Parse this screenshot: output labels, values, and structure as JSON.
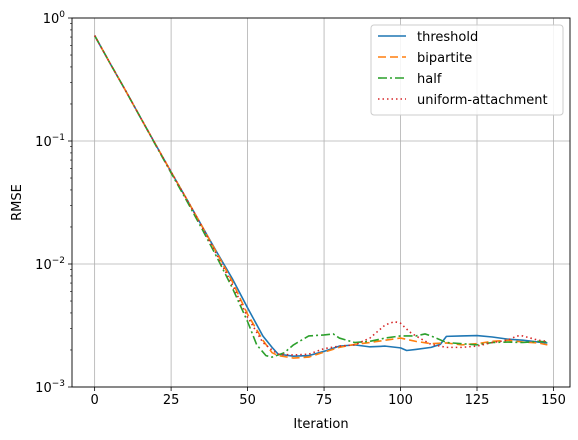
{
  "chart_data": {
    "type": "line",
    "xlabel": "Iteration",
    "ylabel": "RMSE",
    "yscale": "log",
    "xlim": [
      -7.4,
      155.4
    ],
    "ylim": [
      0.001,
      1
    ],
    "x_ticks": [
      0,
      25,
      50,
      75,
      100,
      125,
      150
    ],
    "y_ticks": [
      {
        "value": 0.001,
        "base": "10",
        "exp": "−3"
      },
      {
        "value": 0.01,
        "base": "10",
        "exp": "−2"
      },
      {
        "value": 0.1,
        "base": "10",
        "exp": "−1"
      },
      {
        "value": 1,
        "base": "10",
        "exp": "0"
      }
    ],
    "grid": true,
    "legend_position": "top-right",
    "series": [
      {
        "name": "threshold",
        "color": "#1f77b4",
        "dash": "solid",
        "points": [
          [
            0,
            0.72
          ],
          [
            5,
            0.43
          ],
          [
            10,
            0.26
          ],
          [
            15,
            0.155
          ],
          [
            20,
            0.093
          ],
          [
            25,
            0.056
          ],
          [
            30,
            0.034
          ],
          [
            35,
            0.0205
          ],
          [
            40,
            0.0124
          ],
          [
            45,
            0.0076
          ],
          [
            50,
            0.0044
          ],
          [
            55,
            0.0026
          ],
          [
            58,
            0.0021
          ],
          [
            60,
            0.00185
          ],
          [
            65,
            0.00178
          ],
          [
            70,
            0.0018
          ],
          [
            75,
            0.00195
          ],
          [
            80,
            0.00215
          ],
          [
            85,
            0.0022
          ],
          [
            90,
            0.00212
          ],
          [
            95,
            0.00215
          ],
          [
            100,
            0.00208
          ],
          [
            102,
            0.00198
          ],
          [
            105,
            0.00202
          ],
          [
            110,
            0.0021
          ],
          [
            113,
            0.00222
          ],
          [
            115,
            0.00258
          ],
          [
            120,
            0.0026
          ],
          [
            125,
            0.00262
          ],
          [
            130,
            0.00255
          ],
          [
            135,
            0.00245
          ],
          [
            140,
            0.0024
          ],
          [
            145,
            0.00232
          ],
          [
            148,
            0.00228
          ]
        ]
      },
      {
        "name": "bipartite",
        "color": "#ff7f0e",
        "dash": "8,4",
        "points": [
          [
            0,
            0.72
          ],
          [
            5,
            0.43
          ],
          [
            10,
            0.26
          ],
          [
            15,
            0.155
          ],
          [
            20,
            0.093
          ],
          [
            25,
            0.056
          ],
          [
            30,
            0.034
          ],
          [
            35,
            0.0205
          ],
          [
            40,
            0.0122
          ],
          [
            45,
            0.0072
          ],
          [
            50,
            0.0039
          ],
          [
            55,
            0.0024
          ],
          [
            58,
            0.0019
          ],
          [
            60,
            0.0018
          ],
          [
            65,
            0.00172
          ],
          [
            70,
            0.00175
          ],
          [
            75,
            0.00192
          ],
          [
            80,
            0.0021
          ],
          [
            85,
            0.00222
          ],
          [
            90,
            0.0023
          ],
          [
            95,
            0.0024
          ],
          [
            100,
            0.0025
          ],
          [
            105,
            0.00235
          ],
          [
            110,
            0.00225
          ],
          [
            115,
            0.00228
          ],
          [
            120,
            0.0022
          ],
          [
            125,
            0.00225
          ],
          [
            130,
            0.00235
          ],
          [
            135,
            0.0024
          ],
          [
            140,
            0.00232
          ],
          [
            145,
            0.00228
          ],
          [
            148,
            0.0022
          ]
        ]
      },
      {
        "name": "half",
        "color": "#2ca02c",
        "dash": "9,3,2,3",
        "points": [
          [
            0,
            0.72
          ],
          [
            5,
            0.43
          ],
          [
            10,
            0.26
          ],
          [
            15,
            0.155
          ],
          [
            20,
            0.092
          ],
          [
            25,
            0.055
          ],
          [
            30,
            0.033
          ],
          [
            35,
            0.0195
          ],
          [
            40,
            0.0113
          ],
          [
            45,
            0.0064
          ],
          [
            50,
            0.0034
          ],
          [
            53,
            0.0022
          ],
          [
            56,
            0.0018
          ],
          [
            58,
            0.00175
          ],
          [
            62,
            0.0019
          ],
          [
            65,
            0.0022
          ],
          [
            70,
            0.0026
          ],
          [
            75,
            0.00265
          ],
          [
            78,
            0.0027
          ],
          [
            80,
            0.0025
          ],
          [
            85,
            0.0023
          ],
          [
            90,
            0.00235
          ],
          [
            95,
            0.0025
          ],
          [
            100,
            0.0026
          ],
          [
            105,
            0.0026
          ],
          [
            108,
            0.0027
          ],
          [
            110,
            0.0026
          ],
          [
            115,
            0.0023
          ],
          [
            120,
            0.00225
          ],
          [
            125,
            0.0022
          ],
          [
            130,
            0.0023
          ],
          [
            135,
            0.00232
          ],
          [
            140,
            0.0023
          ],
          [
            145,
            0.00235
          ],
          [
            148,
            0.00232
          ]
        ]
      },
      {
        "name": "uniform-attachment",
        "color": "#d62728",
        "dash": "1.5,3",
        "points": [
          [
            0,
            0.72
          ],
          [
            5,
            0.43
          ],
          [
            10,
            0.26
          ],
          [
            15,
            0.155
          ],
          [
            20,
            0.093
          ],
          [
            25,
            0.056
          ],
          [
            30,
            0.034
          ],
          [
            35,
            0.0203
          ],
          [
            40,
            0.0118
          ],
          [
            45,
            0.0068
          ],
          [
            50,
            0.0037
          ],
          [
            55,
            0.0023
          ],
          [
            58,
            0.002
          ],
          [
            60,
            0.00185
          ],
          [
            65,
            0.00182
          ],
          [
            70,
            0.00185
          ],
          [
            75,
            0.00205
          ],
          [
            80,
            0.00215
          ],
          [
            85,
            0.0022
          ],
          [
            90,
            0.0025
          ],
          [
            95,
            0.0032
          ],
          [
            98,
            0.0034
          ],
          [
            100,
            0.0033
          ],
          [
            103,
            0.0028
          ],
          [
            105,
            0.0026
          ],
          [
            110,
            0.00222
          ],
          [
            115,
            0.0021
          ],
          [
            120,
            0.0021
          ],
          [
            125,
            0.00215
          ],
          [
            130,
            0.0023
          ],
          [
            135,
            0.0024
          ],
          [
            138,
            0.0026
          ],
          [
            140,
            0.0026
          ],
          [
            145,
            0.0024
          ],
          [
            148,
            0.00235
          ]
        ]
      }
    ]
  }
}
